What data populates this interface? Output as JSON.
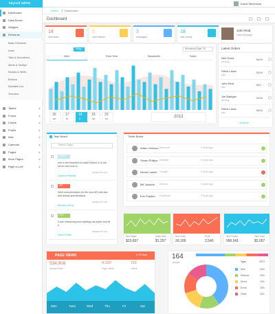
{
  "navbar": {
    "brand": "beyond admin",
    "user": "David Stevenson"
  },
  "breadcrumb": [
    "Home",
    "Dashboard"
  ],
  "page_title": "Dashboard",
  "sidebar": {
    "items": [
      "Dashboard",
      "Data Boxes",
      "Widgets",
      "Elements"
    ],
    "submenu": [
      "Basic Elements",
      "Icons",
      "Tabs & Accordions",
      "Alerts & Tooltips",
      "Modals & Wells",
      "Buttons",
      "Nestable List",
      "Treeview"
    ],
    "items_after": [
      "Tables",
      "Forms",
      "Charts",
      "Profile",
      "Mail",
      "Calendar",
      "Pages",
      "More Pages",
      "Right to Left"
    ]
  },
  "stat_boxes": [
    {
      "value": 14,
      "label": "new tasks"
    },
    {
      "value": 5,
      "label": "open tickets"
    },
    {
      "value": 3,
      "label": "messages"
    },
    {
      "value": 18,
      "label": "new orders"
    }
  ],
  "profile": {
    "name": "John Reid",
    "role": "Sales Manager"
  },
  "visits_chart": {
    "badge": "Today",
    "note": "Remaining Days: 18",
    "tabs": [
      "Web",
      "Real-Time",
      "Bandwidth",
      "Sales"
    ],
    "bars": [
      45,
      60,
      40,
      70,
      55,
      80,
      50,
      65,
      90,
      60,
      75,
      55,
      85,
      70,
      50,
      95,
      65,
      60,
      80,
      55,
      70,
      45,
      85,
      60,
      75,
      50,
      65,
      40,
      55,
      45
    ],
    "line": [
      20,
      30,
      25,
      15,
      28,
      22,
      35,
      18,
      25,
      30,
      20,
      28
    ],
    "days": [
      {
        "num": 16,
        "day": "wo"
      },
      {
        "num": 17,
        "day": "th"
      },
      {
        "num": 18,
        "day": "fr"
      },
      {
        "num": 19,
        "day": "sa"
      },
      {
        "num": 20,
        "day": "su"
      }
    ],
    "year": 2013
  },
  "latest_orders": {
    "title": "Latest Orders",
    "rows": [
      {
        "name": "Neil Grant",
        "status": "pending",
        "amount": "$400"
      },
      {
        "name": "Steve Lewis",
        "status": "paid",
        "amount": "$100"
      },
      {
        "name": "John Reid",
        "status": "paid",
        "amount": "$40"
      },
      {
        "name": "Jim Balinger",
        "status": "pending",
        "amount": "$100"
      },
      {
        "name": "Steve Lewis",
        "status": "paid",
        "amount": "$400"
      }
    ],
    "footer": "Show All"
  },
  "task_board": {
    "title": "Task Board",
    "search": "Search Tasks...",
    "tasks": [
      {
        "tag": "Python",
        "text": "Ask to the beautiful to install Python 3 on the server and how to",
        "meta": "assigned to you",
        "person": "Cameron Hatfield"
      },
      {
        "tag": "API",
        "text": "Write documentation for the new API with test and deploy specifications",
        "meta": "assigned to you",
        "person": "Barnaby Mccoy"
      },
      {
        "tag": "CSS",
        "text": "Code refactoring and rewriting css styles and fix it",
        "meta": "assigned to you",
        "person": "David Forster"
      }
    ]
  },
  "ticket_board": {
    "title": "Ticket Board",
    "rows": [
      {
        "name": "Adam Johnson",
        "company": "Microsoft",
        "time": "3 hours ago"
      },
      {
        "name": "Shuan Phillips",
        "company": "Dribbble",
        "time": "3 hours ago"
      },
      {
        "name": "Nicole Larsen",
        "company": "Google",
        "time": "3 hours ago"
      },
      {
        "name": "Bill Jackson",
        "company": "Mizona",
        "time": "3 hours ago"
      },
      {
        "name": "Eric Clayton",
        "company": "Facebook",
        "time": "3 hours ago"
      }
    ]
  },
  "mini_stats": [
    {
      "values": [
        40,
        70,
        35,
        80,
        50,
        75,
        45,
        85,
        55,
        65
      ],
      "label1": "New Sales",
      "value1": "$23,657",
      "label2": "Sales Total",
      "value2": "$1,257"
    },
    {
      "values": [
        50,
        40,
        75,
        35,
        65,
        45,
        80,
        50,
        70,
        90
      ],
      "label1": "New Visits",
      "value1": "26,109",
      "label2": "Profit",
      "value2": "2,540"
    },
    {
      "values": [
        30,
        60,
        45,
        70,
        40,
        75,
        55,
        65,
        50,
        80
      ],
      "label1": "New Orders",
      "value1": "990,541",
      "label2": "Task Done",
      "value2": "$2,057"
    }
  ],
  "page_views": {
    "title": "PAGE VIEWS",
    "badge": "In 30 days",
    "stats": [
      {
        "value": "534,908",
        "label": "Unique Visits"
      },
      {
        "value": "4,129",
        "label": "Page Views"
      },
      {
        "value": "721",
        "label": "Online"
      }
    ],
    "values": [
      30,
      55,
      35,
      70,
      40,
      60,
      45,
      80,
      50,
      35,
      65,
      30
    ],
    "days": [
      "Mon",
      "Tues",
      "Wed",
      "Thu",
      "Fri",
      "Sat"
    ]
  },
  "donut": {
    "count": 164,
    "caption": "people",
    "values": [
      40,
      15,
      15,
      15,
      15
    ],
    "table": {
      "header": [
        "Type",
        "PCT"
      ],
      "rows": [
        {
          "type": "Web",
          "pct": "40%"
        },
        {
          "type": "Referral",
          "pct": "15%"
        },
        {
          "type": "Direct",
          "pct": "15%"
        },
        {
          "type": "Email",
          "pct": "15%"
        },
        {
          "type": "Other",
          "pct": "15%"
        }
      ]
    }
  }
}
